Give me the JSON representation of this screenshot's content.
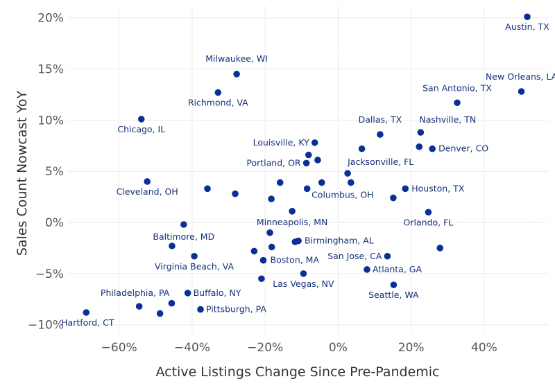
{
  "colors": {
    "point": "#0b2f96",
    "label": "#16307a",
    "tick": "#555555",
    "axis_title": "#333333",
    "grid": "#ececec",
    "zero_line": "#cfcfcf"
  },
  "chart_data": {
    "type": "scatter",
    "title": "",
    "xlabel": "Active Listings Change Since Pre-Pandemic",
    "ylabel": "Sales Count Nowcast YoY",
    "x_unit": "%",
    "y_unit": "%",
    "xlim": [
      -74,
      57.5
    ],
    "ylim": [
      -10.9,
      21.2
    ],
    "xticks": [
      -60,
      -40,
      -20,
      0,
      20,
      40
    ],
    "yticks": [
      -10,
      -5,
      0,
      5,
      10,
      15,
      20
    ],
    "xtick_labels": [
      "−60%",
      "−40%",
      "−20%",
      "0%",
      "20%",
      "40%"
    ],
    "ytick_labels": [
      "−10%",
      "−5%",
      "0%",
      "5%",
      "10%",
      "15%",
      "20%"
    ],
    "grid": true,
    "zero_lines": true,
    "points": [
      {
        "x": 51.8,
        "y": 20.1,
        "label": "Austin, TX",
        "anchor": "middle",
        "dx": 0,
        "dy": 19
      },
      {
        "x": 50.2,
        "y": 12.8,
        "label": "New Orleans, LA",
        "anchor": "middle",
        "dx": 0,
        "dy": -17
      },
      {
        "x": 32.6,
        "y": 11.7,
        "label": "San Antonio, TX",
        "anchor": "middle",
        "dx": 0,
        "dy": -17
      },
      {
        "x": -27.8,
        "y": 14.5,
        "label": "Milwaukee, WI",
        "anchor": "middle",
        "dx": 0,
        "dy": -18
      },
      {
        "x": -32.9,
        "y": 12.7,
        "label": "Richmond, VA",
        "anchor": "middle",
        "dx": 0,
        "dy": 19
      },
      {
        "x": -53.9,
        "y": 10.1,
        "label": "Chicago, IL",
        "anchor": "middle",
        "dx": 0,
        "dy": 19
      },
      {
        "x": 11.5,
        "y": 8.6,
        "label": "Dallas, TX",
        "anchor": "middle",
        "dx": 0,
        "dy": -17
      },
      {
        "x": 22.6,
        "y": 8.8,
        "label": "Nashville, TN",
        "anchor": "start",
        "dx": -2,
        "dy": -14
      },
      {
        "x": -6.4,
        "y": 7.8,
        "label": "Louisville, KY",
        "anchor": "end",
        "dx": -8,
        "dy": 4
      },
      {
        "x": 6.5,
        "y": 7.2,
        "label": "",
        "anchor": "middle",
        "dx": 0,
        "dy": 0
      },
      {
        "x": 22.2,
        "y": 7.4,
        "label": "",
        "anchor": "middle",
        "dx": 0,
        "dy": 0
      },
      {
        "x": 25.8,
        "y": 7.2,
        "label": "Denver, CO",
        "anchor": "start",
        "dx": 9,
        "dy": 4
      },
      {
        "x": -8.1,
        "y": 6.6,
        "label": "",
        "anchor": "middle",
        "dx": 0,
        "dy": 0
      },
      {
        "x": -5.6,
        "y": 6.1,
        "label": "",
        "anchor": "middle",
        "dx": 0,
        "dy": 0
      },
      {
        "x": -8.7,
        "y": 5.8,
        "label": "Portland, OR",
        "anchor": "end",
        "dx": -8,
        "dy": 4
      },
      {
        "x": 2.6,
        "y": 4.8,
        "label": "Jacksonville, FL",
        "anchor": "start",
        "dx": 0,
        "dy": -12
      },
      {
        "x": -52.3,
        "y": 4.0,
        "label": "Cleveland, OH",
        "anchor": "middle",
        "dx": 0,
        "dy": 19
      },
      {
        "x": -35.8,
        "y": 3.3,
        "label": "",
        "anchor": "middle",
        "dx": 0,
        "dy": 0
      },
      {
        "x": -15.9,
        "y": 3.9,
        "label": "",
        "anchor": "middle",
        "dx": 0,
        "dy": 0
      },
      {
        "x": -8.5,
        "y": 3.3,
        "label": "",
        "anchor": "middle",
        "dx": 0,
        "dy": 0
      },
      {
        "x": -4.5,
        "y": 3.9,
        "label": "",
        "anchor": "middle",
        "dx": 0,
        "dy": 0
      },
      {
        "x": 3.5,
        "y": 3.9,
        "label": "Columbus, OH",
        "anchor": "middle",
        "dx": -12,
        "dy": 22
      },
      {
        "x": 18.4,
        "y": 3.3,
        "label": "Houston, TX",
        "anchor": "start",
        "dx": 9,
        "dy": 4
      },
      {
        "x": -28.2,
        "y": 2.8,
        "label": "",
        "anchor": "middle",
        "dx": 0,
        "dy": 0
      },
      {
        "x": -18.3,
        "y": 2.3,
        "label": "",
        "anchor": "middle",
        "dx": 0,
        "dy": 0
      },
      {
        "x": 15.1,
        "y": 2.4,
        "label": "",
        "anchor": "middle",
        "dx": 0,
        "dy": 0
      },
      {
        "x": -12.6,
        "y": 1.1,
        "label": "Minneapolis, MN",
        "anchor": "middle",
        "dx": 0,
        "dy": 20
      },
      {
        "x": 24.7,
        "y": 1.0,
        "label": "Orlando, FL",
        "anchor": "middle",
        "dx": 0,
        "dy": 19
      },
      {
        "x": -42.3,
        "y": -0.2,
        "label": "Baltimore, MD",
        "anchor": "middle",
        "dx": 0,
        "dy": 22
      },
      {
        "x": -18.7,
        "y": -1.0,
        "label": "",
        "anchor": "middle",
        "dx": 0,
        "dy": 0
      },
      {
        "x": -11.8,
        "y": -1.9,
        "label": "",
        "anchor": "middle",
        "dx": 0,
        "dy": 0
      },
      {
        "x": -10.9,
        "y": -1.8,
        "label": "Birmingham, AL",
        "anchor": "start",
        "dx": 9,
        "dy": 4
      },
      {
        "x": -45.5,
        "y": -2.3,
        "label": "",
        "anchor": "middle",
        "dx": 0,
        "dy": 0
      },
      {
        "x": -18.2,
        "y": -2.4,
        "label": "",
        "anchor": "middle",
        "dx": 0,
        "dy": 0
      },
      {
        "x": -23.0,
        "y": -2.8,
        "label": "",
        "anchor": "middle",
        "dx": 0,
        "dy": 0
      },
      {
        "x": 27.9,
        "y": -2.5,
        "label": "",
        "anchor": "middle",
        "dx": 0,
        "dy": 0
      },
      {
        "x": -39.4,
        "y": -3.3,
        "label": "Virginia Beach, VA",
        "anchor": "middle",
        "dx": 0,
        "dy": 19
      },
      {
        "x": -20.5,
        "y": -3.7,
        "label": "Boston, MA",
        "anchor": "start",
        "dx": 10,
        "dy": 4
      },
      {
        "x": 13.5,
        "y": -3.3,
        "label": "San Jose, CA",
        "anchor": "end",
        "dx": -8,
        "dy": 4
      },
      {
        "x": 7.9,
        "y": -4.6,
        "label": "Atlanta, GA",
        "anchor": "start",
        "dx": 8,
        "dy": 4
      },
      {
        "x": -9.5,
        "y": -5.0,
        "label": "Las Vegas, NV",
        "anchor": "middle",
        "dx": 0,
        "dy": 19
      },
      {
        "x": -21.0,
        "y": -5.5,
        "label": "",
        "anchor": "middle",
        "dx": 0,
        "dy": 0
      },
      {
        "x": 15.2,
        "y": -6.1,
        "label": "Seattle, WA",
        "anchor": "middle",
        "dx": 0,
        "dy": 19
      },
      {
        "x": -54.5,
        "y": -8.2,
        "label": "Philadelphia, PA",
        "anchor": "middle",
        "dx": -6,
        "dy": -15
      },
      {
        "x": -41.2,
        "y": -6.9,
        "label": "Buffalo, NY",
        "anchor": "start",
        "dx": 8,
        "dy": 4
      },
      {
        "x": -45.6,
        "y": -7.9,
        "label": "",
        "anchor": "middle",
        "dx": 0,
        "dy": 0
      },
      {
        "x": -37.7,
        "y": -8.5,
        "label": "Pittsburgh, PA",
        "anchor": "start",
        "dx": 8,
        "dy": 4
      },
      {
        "x": -48.8,
        "y": -8.9,
        "label": "",
        "anchor": "middle",
        "dx": 0,
        "dy": 0
      },
      {
        "x": -69.0,
        "y": -8.8,
        "label": "Hartford, CT",
        "anchor": "middle",
        "dx": 2,
        "dy": 19
      }
    ]
  }
}
